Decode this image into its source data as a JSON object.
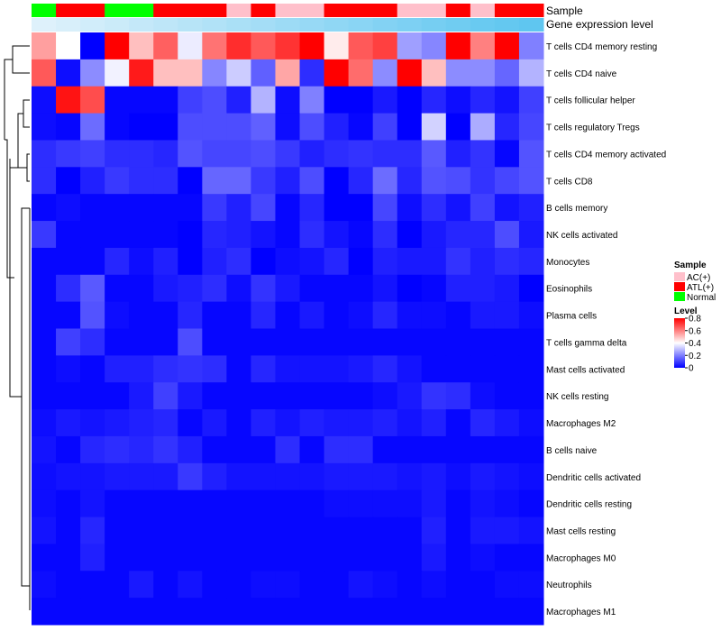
{
  "chart_data": {
    "type": "heatmap",
    "title": "",
    "annotation_labels": {
      "sample": "Sample",
      "gene": "Gene expression level"
    },
    "rows": [
      "T cells CD4 memory resting",
      "T cells CD4 naive",
      "T cells follicular helper",
      "T cells regulatory  Tregs",
      "T cells CD4 memory activated",
      "T cells CD8",
      "B cells memory",
      "NK cells activated",
      "Monocytes",
      "Eosinophils",
      "Plasma cells",
      "T cells gamma delta",
      "Mast cells activated",
      "NK cells resting",
      "Macrophages M2",
      "B cells naive",
      "Dendritic cells activated",
      "Dendritic cells resting",
      "Mast cells resting",
      "Macrophages M0",
      "Neutrophils",
      "Macrophages M1"
    ],
    "sample_groups": [
      "Normal",
      "ATL(+)",
      "ATL(+)",
      "Normal",
      "Normal",
      "ATL(+)",
      "ATL(+)",
      "ATL(+)",
      "AC(+)",
      "ATL(+)",
      "AC(+)",
      "AC(+)",
      "ATL(+)",
      "ATL(+)",
      "ATL(+)",
      "AC(+)",
      "AC(+)",
      "ATL(+)",
      "AC(+)",
      "ATL(+)",
      "ATL(+)"
    ],
    "gene_expression": [
      0.02,
      0.07,
      0.12,
      0.17,
      0.22,
      0.27,
      0.32,
      0.37,
      0.42,
      0.47,
      0.52,
      0.57,
      0.62,
      0.67,
      0.72,
      0.77,
      0.82,
      0.87,
      0.92,
      0.96,
      1.0
    ],
    "values": [
      [
        0.55,
        0.4,
        0.0,
        0.8,
        0.5,
        0.65,
        0.37,
        0.62,
        0.73,
        0.66,
        0.72,
        0.8,
        0.43,
        0.66,
        0.7,
        0.25,
        0.21,
        0.8,
        0.6,
        0.8,
        0.2
      ],
      [
        0.66,
        0.02,
        0.22,
        0.38,
        0.76,
        0.5,
        0.5,
        0.21,
        0.32,
        0.15,
        0.54,
        0.07,
        0.8,
        0.63,
        0.22,
        0.8,
        0.5,
        0.22,
        0.22,
        0.16,
        0.28
      ],
      [
        0.02,
        0.77,
        0.68,
        0.01,
        0.01,
        0.01,
        0.1,
        0.12,
        0.05,
        0.28,
        0.02,
        0.2,
        0.0,
        0.0,
        0.04,
        0.0,
        0.06,
        0.02,
        0.06,
        0.03,
        0.1
      ],
      [
        0.02,
        0.01,
        0.17,
        0.01,
        0.0,
        0.0,
        0.12,
        0.12,
        0.12,
        0.15,
        0.02,
        0.12,
        0.05,
        0.01,
        0.1,
        0.0,
        0.33,
        0.0,
        0.27,
        0.06,
        0.11
      ],
      [
        0.07,
        0.09,
        0.1,
        0.07,
        0.07,
        0.06,
        0.13,
        0.11,
        0.11,
        0.12,
        0.09,
        0.05,
        0.07,
        0.08,
        0.07,
        0.07,
        0.14,
        0.05,
        0.08,
        0.01,
        0.13
      ],
      [
        0.07,
        0.0,
        0.05,
        0.09,
        0.07,
        0.07,
        0.0,
        0.16,
        0.16,
        0.09,
        0.05,
        0.12,
        0.0,
        0.06,
        0.17,
        0.06,
        0.13,
        0.12,
        0.08,
        0.11,
        0.13
      ],
      [
        0.01,
        0.02,
        0.01,
        0.01,
        0.01,
        0.01,
        0.01,
        0.09,
        0.05,
        0.11,
        0.01,
        0.06,
        0.0,
        0.0,
        0.11,
        0.02,
        0.07,
        0.03,
        0.1,
        0.03,
        0.05
      ],
      [
        0.09,
        0.01,
        0.01,
        0.01,
        0.01,
        0.01,
        0.0,
        0.06,
        0.05,
        0.03,
        0.01,
        0.07,
        0.03,
        0.01,
        0.07,
        0.0,
        0.04,
        0.06,
        0.06,
        0.12,
        0.04
      ],
      [
        0.01,
        0.01,
        0.01,
        0.06,
        0.02,
        0.05,
        0.0,
        0.05,
        0.07,
        0.0,
        0.02,
        0.03,
        0.06,
        0.0,
        0.05,
        0.04,
        0.04,
        0.08,
        0.05,
        0.07,
        0.06
      ],
      [
        0.01,
        0.07,
        0.14,
        0.01,
        0.01,
        0.04,
        0.05,
        0.07,
        0.02,
        0.08,
        0.04,
        0.01,
        0.01,
        0.01,
        0.03,
        0.0,
        0.01,
        0.05,
        0.05,
        0.04,
        0.0
      ],
      [
        0.01,
        0.01,
        0.13,
        0.02,
        0.01,
        0.01,
        0.06,
        0.01,
        0.01,
        0.06,
        0.01,
        0.04,
        0.01,
        0.02,
        0.06,
        0.02,
        0.02,
        0.01,
        0.04,
        0.04,
        0.02
      ],
      [
        0.01,
        0.1,
        0.07,
        0.01,
        0.01,
        0.01,
        0.12,
        0.01,
        0.01,
        0.01,
        0.01,
        0.01,
        0.01,
        0.01,
        0.01,
        0.01,
        0.01,
        0.01,
        0.01,
        0.01,
        0.01
      ],
      [
        0.01,
        0.02,
        0.01,
        0.05,
        0.05,
        0.07,
        0.08,
        0.07,
        0.01,
        0.06,
        0.03,
        0.03,
        0.03,
        0.04,
        0.06,
        0.03,
        0.01,
        0.01,
        0.01,
        0.01,
        0.01
      ],
      [
        0.01,
        0.01,
        0.01,
        0.01,
        0.04,
        0.1,
        0.04,
        0.01,
        0.01,
        0.01,
        0.01,
        0.01,
        0.01,
        0.01,
        0.02,
        0.04,
        0.08,
        0.07,
        0.02,
        0.01,
        0.01
      ],
      [
        0.02,
        0.04,
        0.03,
        0.04,
        0.05,
        0.06,
        0.01,
        0.04,
        0.01,
        0.05,
        0.03,
        0.05,
        0.04,
        0.04,
        0.05,
        0.03,
        0.05,
        0.01,
        0.06,
        0.04,
        0.02
      ],
      [
        0.03,
        0.01,
        0.06,
        0.07,
        0.06,
        0.08,
        0.05,
        0.01,
        0.01,
        0.01,
        0.07,
        0.01,
        0.07,
        0.07,
        0.01,
        0.01,
        0.01,
        0.01,
        0.01,
        0.01,
        0.01
      ],
      [
        0.02,
        0.03,
        0.03,
        0.04,
        0.04,
        0.04,
        0.09,
        0.05,
        0.03,
        0.03,
        0.03,
        0.03,
        0.04,
        0.04,
        0.04,
        0.03,
        0.04,
        0.02,
        0.04,
        0.03,
        0.02
      ],
      [
        0.02,
        0.01,
        0.03,
        0.01,
        0.01,
        0.01,
        0.01,
        0.01,
        0.01,
        0.01,
        0.01,
        0.01,
        0.02,
        0.02,
        0.02,
        0.02,
        0.04,
        0.01,
        0.03,
        0.02,
        0.01
      ],
      [
        0.03,
        0.01,
        0.06,
        0.01,
        0.01,
        0.01,
        0.01,
        0.01,
        0.01,
        0.01,
        0.01,
        0.01,
        0.01,
        0.01,
        0.01,
        0.01,
        0.05,
        0.01,
        0.04,
        0.04,
        0.03
      ],
      [
        0.01,
        0.01,
        0.05,
        0.01,
        0.01,
        0.01,
        0.01,
        0.01,
        0.01,
        0.01,
        0.01,
        0.01,
        0.01,
        0.01,
        0.01,
        0.01,
        0.04,
        0.01,
        0.02,
        0.01,
        0.01
      ],
      [
        0.02,
        0.01,
        0.01,
        0.01,
        0.04,
        0.01,
        0.03,
        0.01,
        0.01,
        0.02,
        0.02,
        0.01,
        0.01,
        0.03,
        0.02,
        0.01,
        0.02,
        0.01,
        0.01,
        0.02,
        0.02
      ],
      [
        0.01,
        0.01,
        0.01,
        0.01,
        0.01,
        0.01,
        0.01,
        0.01,
        0.01,
        0.01,
        0.01,
        0.01,
        0.01,
        0.01,
        0.01,
        0.01,
        0.01,
        0.01,
        0.01,
        0.01,
        0.01
      ]
    ],
    "legend": {
      "sample_title": "Sample",
      "sample_items": [
        {
          "label": "AC(+)",
          "color": "#ffc0cb"
        },
        {
          "label": "ATL(+)",
          "color": "#ff0000"
        },
        {
          "label": "Normal",
          "color": "#00ff00"
        }
      ],
      "level_title": "Level",
      "level_ticks": [
        "0.8",
        "0.6",
        "0.4",
        "0.2",
        "0"
      ],
      "level_tick_values": [
        0.8,
        0.6,
        0.4,
        0.2,
        0
      ],
      "level_range": [
        0,
        0.8
      ],
      "placement": "right"
    },
    "colors": {
      "low": "#0000ff",
      "mid": "#ffffff",
      "high": "#ff0000",
      "gene_low": "#e1f2fb",
      "gene_high": "#5fc6f0"
    }
  }
}
